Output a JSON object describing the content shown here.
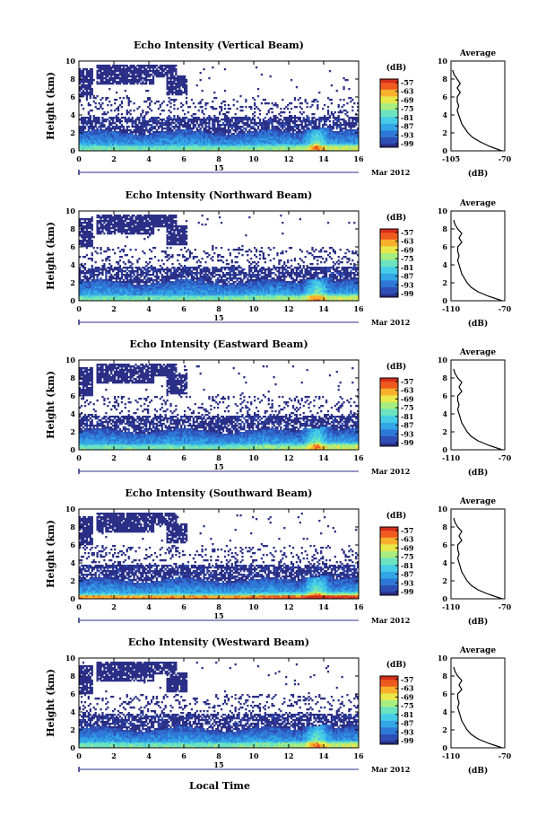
{
  "figure": {
    "xlabel": "Local Time",
    "date_label": "Mar 2012",
    "day_label": "15"
  },
  "colorbar": {
    "unit_label": "(dB)",
    "ticks": [
      "-57",
      "-63",
      "-69",
      "-75",
      "-81",
      "-87",
      "-93",
      "-99"
    ]
  },
  "colors": {
    "echo_scale": [
      "#2a2f86",
      "#2f4fb5",
      "#2e78d8",
      "#33a6e6",
      "#46cde6",
      "#6be3c0",
      "#a6ee80",
      "#e9e84a",
      "#f8b02c",
      "#ef5a1e",
      "#d62e1c"
    ]
  },
  "chart_data": [
    {
      "type": "heatmap",
      "title": "Echo Intensity (Vertical Beam)",
      "ylabel": "Height (km)",
      "ylim": [
        0,
        10
      ],
      "xlim": [
        0,
        16
      ],
      "x_ticks": [
        "0",
        "2",
        "4",
        "6",
        "8",
        "10",
        "12",
        "14",
        "16"
      ],
      "y_ticks": [
        "0",
        "2",
        "4",
        "6",
        "8",
        "10"
      ],
      "average": {
        "title": "Average",
        "xlabel": "(dB)",
        "x_ticks": [
          "-105",
          "-70"
        ],
        "xlim": [
          -105,
          -70
        ],
        "heights": [
          0,
          0.5,
          1,
          1.5,
          2,
          2.5,
          3,
          3.5,
          4,
          4.5,
          5,
          5.5,
          6,
          6.5,
          7,
          7.5,
          8,
          8.5,
          9
        ],
        "values": [
          -72,
          -80,
          -86,
          -91,
          -94,
          -96,
          -98,
          -99,
          -100,
          -101,
          -100,
          -101,
          -101,
          -99,
          -101,
          -99,
          -101,
          -103,
          -104
        ]
      }
    },
    {
      "type": "heatmap",
      "title": "Echo Intensity (Northward Beam)",
      "ylabel": "Height (km)",
      "ylim": [
        0,
        10
      ],
      "xlim": [
        0,
        16
      ],
      "x_ticks": [
        "0",
        "2",
        "4",
        "6",
        "8",
        "10",
        "12",
        "14",
        "16"
      ],
      "y_ticks": [
        "0",
        "2",
        "4",
        "6",
        "8",
        "10"
      ],
      "average": {
        "title": "Average",
        "xlabel": "(dB)",
        "x_ticks": [
          "-110",
          "-70"
        ],
        "xlim": [
          -110,
          -70
        ],
        "heights": [
          0,
          0.5,
          1,
          1.5,
          2,
          2.5,
          3,
          3.5,
          4,
          4.5,
          5,
          5.5,
          6,
          6.5,
          7,
          7.5,
          8,
          8.5,
          9
        ],
        "values": [
          -72,
          -82,
          -90,
          -95,
          -98,
          -100,
          -102,
          -103,
          -104,
          -105,
          -104,
          -105,
          -105,
          -102,
          -104,
          -102,
          -105,
          -107,
          -108
        ]
      }
    },
    {
      "type": "heatmap",
      "title": "Echo Intensity (Eastward Beam)",
      "ylabel": "Height (km)",
      "ylim": [
        0,
        10
      ],
      "xlim": [
        0,
        16
      ],
      "x_ticks": [
        "0",
        "2",
        "4",
        "6",
        "8",
        "10",
        "12",
        "14",
        "16"
      ],
      "y_ticks": [
        "0",
        "2",
        "4",
        "6",
        "8",
        "10"
      ],
      "average": {
        "title": "Average",
        "xlabel": "(dB)",
        "x_ticks": [
          "-110",
          "-70"
        ],
        "xlim": [
          -110,
          -70
        ],
        "heights": [
          0,
          0.5,
          1,
          1.5,
          2,
          2.5,
          3,
          3.5,
          4,
          4.5,
          5,
          5.5,
          6,
          6.5,
          7,
          7.5,
          8,
          8.5,
          9
        ],
        "values": [
          -72,
          -82,
          -90,
          -95,
          -98,
          -100,
          -102,
          -103,
          -104,
          -105,
          -104,
          -105,
          -105,
          -102,
          -104,
          -102,
          -105,
          -107,
          -108
        ]
      }
    },
    {
      "type": "heatmap",
      "title": "Echo Intensity (Southward Beam)",
      "ylabel": "Height (km)",
      "ylim": [
        0,
        10
      ],
      "xlim": [
        0,
        16
      ],
      "x_ticks": [
        "0",
        "2",
        "4",
        "6",
        "8",
        "10",
        "12",
        "14",
        "16"
      ],
      "y_ticks": [
        "0",
        "2",
        "4",
        "6",
        "8",
        "10"
      ],
      "average": {
        "title": "Average",
        "xlabel": "(dB)",
        "x_ticks": [
          "-110",
          "-70"
        ],
        "xlim": [
          -110,
          -70
        ],
        "heights": [
          0,
          0.5,
          1,
          1.5,
          2,
          2.5,
          3,
          3.5,
          4,
          4.5,
          5,
          5.5,
          6,
          6.5,
          7,
          7.5,
          8,
          8.5,
          9
        ],
        "values": [
          -72,
          -82,
          -90,
          -95,
          -98,
          -100,
          -102,
          -103,
          -104,
          -105,
          -104,
          -105,
          -105,
          -102,
          -104,
          -102,
          -105,
          -107,
          -108
        ]
      }
    },
    {
      "type": "heatmap",
      "title": "Echo Intensity (Westward Beam)",
      "ylabel": "Height (km)",
      "ylim": [
        0,
        10
      ],
      "xlim": [
        0,
        16
      ],
      "x_ticks": [
        "0",
        "2",
        "4",
        "6",
        "8",
        "10",
        "12",
        "14",
        "16"
      ],
      "y_ticks": [
        "0",
        "2",
        "4",
        "6",
        "8",
        "10"
      ],
      "average": {
        "title": "Average",
        "xlabel": "(dB)",
        "x_ticks": [
          "-110",
          "-70"
        ],
        "xlim": [
          -110,
          -70
        ],
        "heights": [
          0,
          0.5,
          1,
          1.5,
          2,
          2.5,
          3,
          3.5,
          4,
          4.5,
          5,
          5.5,
          6,
          6.5,
          7,
          7.5,
          8,
          8.5,
          9
        ],
        "values": [
          -72,
          -82,
          -90,
          -95,
          -98,
          -100,
          -102,
          -103,
          -104,
          -105,
          -104,
          -105,
          -105,
          -102,
          -104,
          -102,
          -105,
          -107,
          -108
        ]
      }
    }
  ]
}
